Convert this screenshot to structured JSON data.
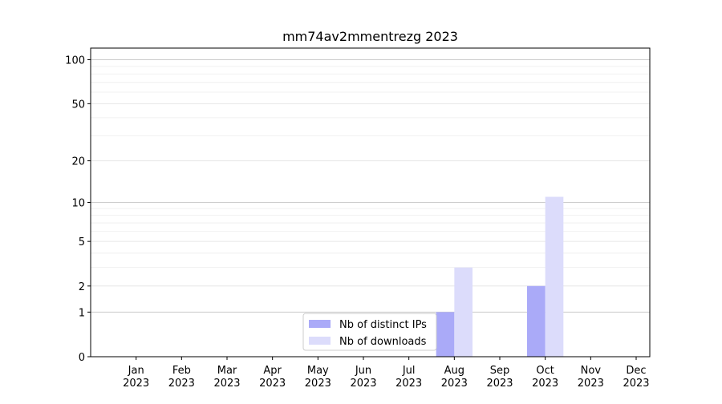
{
  "chart_data": {
    "type": "bar",
    "title": "mm74av2mmentrezg 2023",
    "xlabel": "",
    "ylabel": "",
    "categories": [
      [
        "Jan",
        "2023"
      ],
      [
        "Feb",
        "2023"
      ],
      [
        "Mar",
        "2023"
      ],
      [
        "Apr",
        "2023"
      ],
      [
        "May",
        "2023"
      ],
      [
        "Jun",
        "2023"
      ],
      [
        "Jul",
        "2023"
      ],
      [
        "Aug",
        "2023"
      ],
      [
        "Sep",
        "2023"
      ],
      [
        "Oct",
        "2023"
      ],
      [
        "Nov",
        "2023"
      ],
      [
        "Dec",
        "2023"
      ]
    ],
    "series": [
      {
        "name": "Nb of distinct IPs",
        "color": "#aaaaf8",
        "values": [
          0,
          0,
          0,
          0,
          0,
          0,
          0,
          1,
          0,
          2,
          0,
          0
        ]
      },
      {
        "name": "Nb of downloads",
        "color": "#dcdcfb",
        "values": [
          0,
          0,
          0,
          0,
          0,
          0,
          0,
          3,
          0,
          11,
          0,
          0
        ]
      }
    ],
    "yscale": "symlog",
    "ylim": [
      0,
      120
    ],
    "yticks": [
      0,
      1,
      2,
      5,
      10,
      20,
      50,
      100
    ],
    "grid": true,
    "legend_position": "bottom-center"
  }
}
